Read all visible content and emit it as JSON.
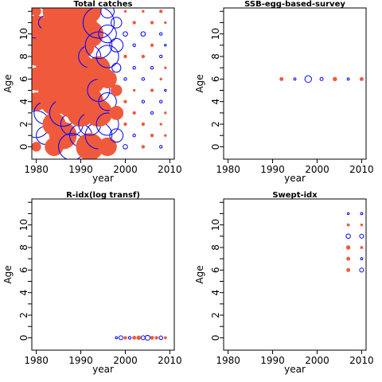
{
  "figure": {
    "colors": {
      "positive": "#f05a3c",
      "negative": "#0000ff",
      "axis": "#000000",
      "background": "#ffffff"
    }
  },
  "chart_data": [
    {
      "type": "scatter",
      "title": "Total catches",
      "xlabel": "year",
      "ylabel": "Age",
      "xlim": [
        1979,
        2011
      ],
      "ylim": [
        -1.1,
        12.3
      ],
      "x_ticks": [
        1980,
        1990,
        2000,
        2010
      ],
      "y_ticks": [
        0,
        2,
        4,
        6,
        8,
        10
      ],
      "x_tick_labels": [
        "1980",
        "1990",
        "2000",
        "2010"
      ],
      "y_tick_labels": [
        "0",
        "2",
        "4",
        "6",
        "8",
        "10"
      ],
      "legend": "none",
      "grid": false,
      "description_of_encoding": "bubble plot of residuals; filled red = positive, open blue = negative, size = magnitude",
      "points": [
        {
          "x": 1980,
          "y": 0,
          "r": 1.0,
          "s": "pos"
        },
        {
          "x": 1980,
          "y": 2,
          "r": 3.0,
          "s": "neg"
        },
        {
          "x": 1980,
          "y": 4,
          "r": 2.0,
          "s": "pos"
        },
        {
          "x": 1980,
          "y": 6,
          "r": 2.5,
          "s": "pos"
        },
        {
          "x": 1980,
          "y": 8,
          "r": 2.0,
          "s": "pos"
        },
        {
          "x": 1980,
          "y": 10,
          "r": 4.0,
          "s": "pos"
        },
        {
          "x": 1980,
          "y": 11,
          "r": 3.5,
          "s": "neg"
        },
        {
          "x": 1980,
          "y": 12,
          "r": 1.0,
          "s": "pos"
        },
        {
          "x": 1982,
          "y": 1,
          "r": 2.0,
          "s": "neg"
        },
        {
          "x": 1982,
          "y": 3,
          "r": 2.5,
          "s": "neg"
        },
        {
          "x": 1982,
          "y": 5,
          "r": 1.5,
          "s": "pos"
        },
        {
          "x": 1982,
          "y": 7,
          "r": 2.0,
          "s": "pos"
        },
        {
          "x": 1982,
          "y": 9,
          "r": 2.5,
          "s": "pos"
        },
        {
          "x": 1982,
          "y": 11,
          "r": 1.5,
          "s": "neg"
        },
        {
          "x": 1984,
          "y": 0,
          "r": 2.0,
          "s": "pos"
        },
        {
          "x": 1984,
          "y": 2,
          "r": 2.5,
          "s": "pos"
        },
        {
          "x": 1984,
          "y": 4,
          "r": 3.0,
          "s": "pos"
        },
        {
          "x": 1984,
          "y": 6,
          "r": 2.5,
          "s": "pos"
        },
        {
          "x": 1984,
          "y": 8,
          "r": 3.5,
          "s": "pos"
        },
        {
          "x": 1984,
          "y": 10,
          "r": 3.0,
          "s": "pos"
        },
        {
          "x": 1984,
          "y": 12,
          "r": 2.5,
          "s": "pos"
        },
        {
          "x": 1986,
          "y": 1,
          "r": 3.0,
          "s": "pos"
        },
        {
          "x": 1986,
          "y": 3,
          "r": 3.0,
          "s": "neg"
        },
        {
          "x": 1986,
          "y": 5,
          "r": 2.5,
          "s": "pos"
        },
        {
          "x": 1986,
          "y": 7,
          "r": 3.0,
          "s": "pos"
        },
        {
          "x": 1986,
          "y": 9,
          "r": 3.5,
          "s": "pos"
        },
        {
          "x": 1986,
          "y": 11,
          "r": 3.0,
          "s": "pos"
        },
        {
          "x": 1988,
          "y": 0,
          "r": 3.0,
          "s": "neg"
        },
        {
          "x": 1988,
          "y": 2,
          "r": 2.5,
          "s": "neg"
        },
        {
          "x": 1988,
          "y": 4,
          "r": 3.5,
          "s": "pos"
        },
        {
          "x": 1988,
          "y": 6,
          "r": 3.0,
          "s": "pos"
        },
        {
          "x": 1988,
          "y": 8,
          "r": 3.5,
          "s": "pos"
        },
        {
          "x": 1988,
          "y": 10,
          "r": 3.0,
          "s": "pos"
        },
        {
          "x": 1988,
          "y": 12,
          "r": 2.5,
          "s": "pos"
        },
        {
          "x": 1990,
          "y": 1,
          "r": 2.5,
          "s": "neg"
        },
        {
          "x": 1990,
          "y": 3,
          "r": 3.0,
          "s": "pos"
        },
        {
          "x": 1990,
          "y": 5,
          "r": 3.5,
          "s": "pos"
        },
        {
          "x": 1990,
          "y": 7,
          "r": 3.0,
          "s": "pos"
        },
        {
          "x": 1990,
          "y": 9,
          "r": 3.0,
          "s": "pos"
        },
        {
          "x": 1990,
          "y": 11,
          "r": 3.5,
          "s": "pos"
        },
        {
          "x": 1992,
          "y": 0,
          "r": 3.0,
          "s": "pos"
        },
        {
          "x": 1992,
          "y": 2,
          "r": 2.5,
          "s": "neg"
        },
        {
          "x": 1992,
          "y": 4,
          "r": 3.0,
          "s": "pos"
        },
        {
          "x": 1992,
          "y": 6,
          "r": 3.5,
          "s": "pos"
        },
        {
          "x": 1992,
          "y": 8,
          "r": 2.5,
          "s": "neg"
        },
        {
          "x": 1992,
          "y": 10,
          "r": 3.0,
          "s": "pos"
        },
        {
          "x": 1992,
          "y": 12,
          "r": 2.5,
          "s": "pos"
        },
        {
          "x": 1994,
          "y": 1,
          "r": 3.0,
          "s": "neg"
        },
        {
          "x": 1994,
          "y": 3,
          "r": 3.0,
          "s": "pos"
        },
        {
          "x": 1994,
          "y": 5,
          "r": 2.5,
          "s": "neg"
        },
        {
          "x": 1994,
          "y": 7,
          "r": 2.5,
          "s": "pos"
        },
        {
          "x": 1994,
          "y": 9,
          "r": 3.0,
          "s": "neg"
        },
        {
          "x": 1994,
          "y": 11,
          "r": 3.5,
          "s": "neg"
        },
        {
          "x": 1996,
          "y": 0,
          "r": 2.0,
          "s": "pos"
        },
        {
          "x": 1996,
          "y": 2,
          "r": 2.5,
          "s": "neg"
        },
        {
          "x": 1996,
          "y": 4,
          "r": 2.0,
          "s": "neg"
        },
        {
          "x": 1996,
          "y": 6,
          "r": 2.0,
          "s": "pos"
        },
        {
          "x": 1996,
          "y": 8,
          "r": 2.5,
          "s": "neg"
        },
        {
          "x": 1996,
          "y": 10,
          "r": 2.0,
          "s": "neg"
        },
        {
          "x": 1996,
          "y": 12,
          "r": 1.5,
          "s": "neg"
        },
        {
          "x": 1998,
          "y": 1,
          "r": 1.5,
          "s": "neg"
        },
        {
          "x": 1998,
          "y": 3,
          "r": 1.5,
          "s": "pos"
        },
        {
          "x": 1998,
          "y": 5,
          "r": 1.2,
          "s": "pos"
        },
        {
          "x": 1998,
          "y": 7,
          "r": 1.0,
          "s": "neg"
        },
        {
          "x": 1998,
          "y": 9,
          "r": 1.5,
          "s": "neg"
        },
        {
          "x": 1998,
          "y": 11,
          "r": 1.2,
          "s": "neg"
        },
        {
          "x": 2000,
          "y": 0,
          "r": 0.5,
          "s": "neg"
        },
        {
          "x": 2000,
          "y": 2,
          "r": 0.3,
          "s": "pos"
        },
        {
          "x": 2000,
          "y": 4,
          "r": 0.3,
          "s": "pos"
        },
        {
          "x": 2000,
          "y": 6,
          "r": 0.3,
          "s": "neg"
        },
        {
          "x": 2000,
          "y": 8,
          "r": 0.3,
          "s": "pos"
        },
        {
          "x": 2000,
          "y": 10,
          "r": 0.5,
          "s": "neg"
        },
        {
          "x": 2000,
          "y": 12,
          "r": 0.2,
          "s": "pos"
        },
        {
          "x": 2002,
          "y": 1,
          "r": 0.3,
          "s": "neg"
        },
        {
          "x": 2002,
          "y": 3,
          "r": 0.3,
          "s": "pos"
        },
        {
          "x": 2002,
          "y": 5,
          "r": 0.2,
          "s": "pos"
        },
        {
          "x": 2002,
          "y": 7,
          "r": 0.3,
          "s": "neg"
        },
        {
          "x": 2002,
          "y": 9,
          "r": 0.3,
          "s": "neg"
        },
        {
          "x": 2002,
          "y": 11,
          "r": 0.3,
          "s": "pos"
        },
        {
          "x": 2004,
          "y": 0,
          "r": 0.3,
          "s": "pos"
        },
        {
          "x": 2004,
          "y": 2,
          "r": 0.3,
          "s": "pos"
        },
        {
          "x": 2004,
          "y": 4,
          "r": 0.3,
          "s": "neg"
        },
        {
          "x": 2004,
          "y": 6,
          "r": 0.3,
          "s": "neg"
        },
        {
          "x": 2004,
          "y": 8,
          "r": 0.3,
          "s": "pos"
        },
        {
          "x": 2004,
          "y": 10,
          "r": 0.5,
          "s": "neg"
        },
        {
          "x": 2004,
          "y": 12,
          "r": 0.2,
          "s": "pos"
        },
        {
          "x": 2006,
          "y": 1,
          "r": 0.3,
          "s": "pos"
        },
        {
          "x": 2006,
          "y": 3,
          "r": 0.3,
          "s": "neg"
        },
        {
          "x": 2006,
          "y": 5,
          "r": 0.3,
          "s": "pos"
        },
        {
          "x": 2006,
          "y": 7,
          "r": 0.3,
          "s": "neg"
        },
        {
          "x": 2006,
          "y": 9,
          "r": 0.3,
          "s": "pos"
        },
        {
          "x": 2006,
          "y": 11,
          "r": 0.3,
          "s": "pos"
        },
        {
          "x": 2008,
          "y": 0,
          "r": 0.3,
          "s": "neg"
        },
        {
          "x": 2008,
          "y": 2,
          "r": 0.2,
          "s": "pos"
        },
        {
          "x": 2008,
          "y": 4,
          "r": 0.3,
          "s": "neg"
        },
        {
          "x": 2008,
          "y": 6,
          "r": 0.2,
          "s": "pos"
        },
        {
          "x": 2008,
          "y": 8,
          "r": 0.3,
          "s": "neg"
        },
        {
          "x": 2008,
          "y": 10,
          "r": 0.3,
          "s": "neg"
        },
        {
          "x": 2008,
          "y": 12,
          "r": 0.3,
          "s": "pos"
        },
        {
          "x": 2009,
          "y": 1,
          "r": 0.2,
          "s": "pos"
        },
        {
          "x": 2009,
          "y": 3,
          "r": 0.2,
          "s": "pos"
        },
        {
          "x": 2009,
          "y": 5,
          "r": 0.2,
          "s": "neg"
        },
        {
          "x": 2009,
          "y": 7,
          "r": 0.2,
          "s": "pos"
        },
        {
          "x": 2009,
          "y": 9,
          "r": 0.2,
          "s": "neg"
        },
        {
          "x": 2009,
          "y": 11,
          "r": 0.2,
          "s": "pos"
        }
      ]
    },
    {
      "type": "scatter",
      "title": "SSB-egg-based-survey",
      "xlabel": "year",
      "ylabel": "Age",
      "xlim": [
        1979,
        2011
      ],
      "ylim": [
        -1.1,
        12.3
      ],
      "x_ticks": [
        1980,
        1990,
        2000,
        2010
      ],
      "y_ticks": [
        0,
        2,
        4,
        6,
        8,
        10
      ],
      "x_tick_labels": [
        "1980",
        "1990",
        "2000",
        "2010"
      ],
      "y_tick_labels": [
        "0",
        "2",
        "4",
        "6",
        "8",
        "10"
      ],
      "legend": "none",
      "grid": false,
      "points": [
        {
          "x": 1992,
          "y": 6,
          "r": 0.35,
          "s": "pos"
        },
        {
          "x": 1995,
          "y": 6,
          "r": 0.25,
          "s": "neg"
        },
        {
          "x": 1998,
          "y": 6,
          "r": 0.75,
          "s": "neg"
        },
        {
          "x": 2001,
          "y": 6,
          "r": 0.35,
          "s": "neg"
        },
        {
          "x": 2004,
          "y": 6,
          "r": 0.4,
          "s": "pos"
        },
        {
          "x": 2007,
          "y": 6,
          "r": 0.25,
          "s": "neg"
        },
        {
          "x": 2010,
          "y": 6,
          "r": 0.35,
          "s": "pos"
        }
      ]
    },
    {
      "type": "scatter",
      "title": "R-idx(log transf)",
      "xlabel": "year",
      "ylabel": "Age",
      "xlim": [
        1979,
        2011
      ],
      "ylim": [
        -1.1,
        12.3
      ],
      "x_ticks": [
        1980,
        1990,
        2000,
        2010
      ],
      "y_ticks": [
        0,
        2,
        4,
        6,
        8,
        10
      ],
      "x_tick_labels": [
        "1980",
        "1990",
        "2000",
        "2010"
      ],
      "y_tick_labels": [
        "0",
        "2",
        "4",
        "6",
        "8",
        "10"
      ],
      "legend": "none",
      "grid": false,
      "points": [
        {
          "x": 1998,
          "y": 0,
          "r": 0.25,
          "s": "neg"
        },
        {
          "x": 1999,
          "y": 0,
          "r": 0.45,
          "s": "neg"
        },
        {
          "x": 2000,
          "y": 0,
          "r": 0.3,
          "s": "pos"
        },
        {
          "x": 2001,
          "y": 0,
          "r": 0.3,
          "s": "neg"
        },
        {
          "x": 2002,
          "y": 0,
          "r": 0.35,
          "s": "pos"
        },
        {
          "x": 2003,
          "y": 0,
          "r": 0.4,
          "s": "pos"
        },
        {
          "x": 2004,
          "y": 0,
          "r": 0.45,
          "s": "neg"
        },
        {
          "x": 2005,
          "y": 0,
          "r": 0.55,
          "s": "neg"
        },
        {
          "x": 2006,
          "y": 0,
          "r": 0.35,
          "s": "pos"
        },
        {
          "x": 2007,
          "y": 0,
          "r": 0.3,
          "s": "pos"
        },
        {
          "x": 2008,
          "y": 0,
          "r": 0.4,
          "s": "neg"
        },
        {
          "x": 2009,
          "y": 0,
          "r": 0.25,
          "s": "pos"
        }
      ]
    },
    {
      "type": "scatter",
      "title": "Swept-idx",
      "xlabel": "year",
      "ylabel": "Age",
      "xlim": [
        1979,
        2011
      ],
      "ylim": [
        -1.1,
        12.3
      ],
      "x_ticks": [
        1980,
        1990,
        2000,
        2010
      ],
      "y_ticks": [
        0,
        2,
        4,
        6,
        8,
        10
      ],
      "x_tick_labels": [
        "1980",
        "1990",
        "2000",
        "2010"
      ],
      "y_tick_labels": [
        "0",
        "2",
        "4",
        "6",
        "8",
        "10"
      ],
      "legend": "none",
      "grid": false,
      "points": [
        {
          "x": 2007,
          "y": 6,
          "r": 0.35,
          "s": "pos"
        },
        {
          "x": 2007,
          "y": 7,
          "r": 0.35,
          "s": "pos"
        },
        {
          "x": 2007,
          "y": 8,
          "r": 0.4,
          "s": "pos"
        },
        {
          "x": 2007,
          "y": 9,
          "r": 0.5,
          "s": "neg"
        },
        {
          "x": 2007,
          "y": 10,
          "r": 0.25,
          "s": "pos"
        },
        {
          "x": 2007,
          "y": 11,
          "r": 0.1,
          "s": "neg"
        },
        {
          "x": 2010,
          "y": 6,
          "r": 0.45,
          "s": "neg"
        },
        {
          "x": 2010,
          "y": 7,
          "r": 0.25,
          "s": "neg"
        },
        {
          "x": 2010,
          "y": 8,
          "r": 0.25,
          "s": "pos"
        },
        {
          "x": 2010,
          "y": 9,
          "r": 0.45,
          "s": "neg"
        },
        {
          "x": 2010,
          "y": 10,
          "r": 0.15,
          "s": "pos"
        },
        {
          "x": 2010,
          "y": 11,
          "r": 0.25,
          "s": "neg"
        }
      ]
    }
  ]
}
